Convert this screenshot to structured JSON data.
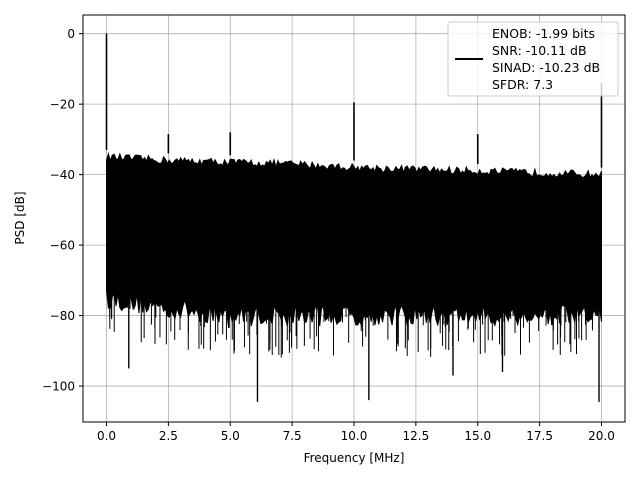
{
  "chart_data": {
    "type": "line",
    "title": "",
    "xlabel": "Frequency [MHz]",
    "ylabel": "PSD [dB]",
    "xlim": [
      -0.95,
      20.95
    ],
    "ylim": [
      -110.2,
      5.3
    ],
    "x_ticks": [
      0.0,
      2.5,
      5.0,
      7.5,
      10.0,
      12.5,
      15.0,
      17.5,
      20.0
    ],
    "x_tick_labels": [
      "0.0",
      "2.5",
      "5.0",
      "7.5",
      "10.0",
      "12.5",
      "15.0",
      "17.5",
      "20.0"
    ],
    "y_ticks": [
      0,
      -20,
      -40,
      -60,
      -80,
      -100
    ],
    "y_tick_labels": [
      "0",
      "−20",
      "−40",
      "−60",
      "−80",
      "−100"
    ],
    "grid": true,
    "legend_position": "top-right",
    "legend_lines": [
      "ENOB: -1.99 bits",
      "SNR: -10.11 dB",
      "SINAD: -10.23 dB",
      "SFDR: 7.3"
    ],
    "noise_floor": {
      "x": [
        0.0,
        2.5,
        5.0,
        7.5,
        10.0,
        12.5,
        15.0,
        17.5,
        20.0
      ],
      "upper_envelope": [
        -35,
        -36,
        -36.5,
        -37,
        -38,
        -38.5,
        -39,
        -39.5,
        -40
      ],
      "lower_envelope": [
        -75,
        -78,
        -80,
        -80,
        -80,
        -80,
        -80,
        -80,
        -80
      ]
    },
    "series": [
      {
        "name": "",
        "color": "#000000",
        "spikes": [
          {
            "x": 0.0,
            "y": 0
          },
          {
            "x": 2.5,
            "y": -28.5
          },
          {
            "x": 5.0,
            "y": -28
          },
          {
            "x": 10.0,
            "y": -19.5
          },
          {
            "x": 15.0,
            "y": -28.5
          },
          {
            "x": 20.0,
            "y": -14
          }
        ],
        "deep_nulls": [
          {
            "x": 0.9,
            "y": -95
          },
          {
            "x": 6.1,
            "y": -104.5
          },
          {
            "x": 10.6,
            "y": -104
          },
          {
            "x": 14.0,
            "y": -97
          },
          {
            "x": 16.0,
            "y": -96
          },
          {
            "x": 19.9,
            "y": -104.5
          }
        ]
      }
    ]
  }
}
